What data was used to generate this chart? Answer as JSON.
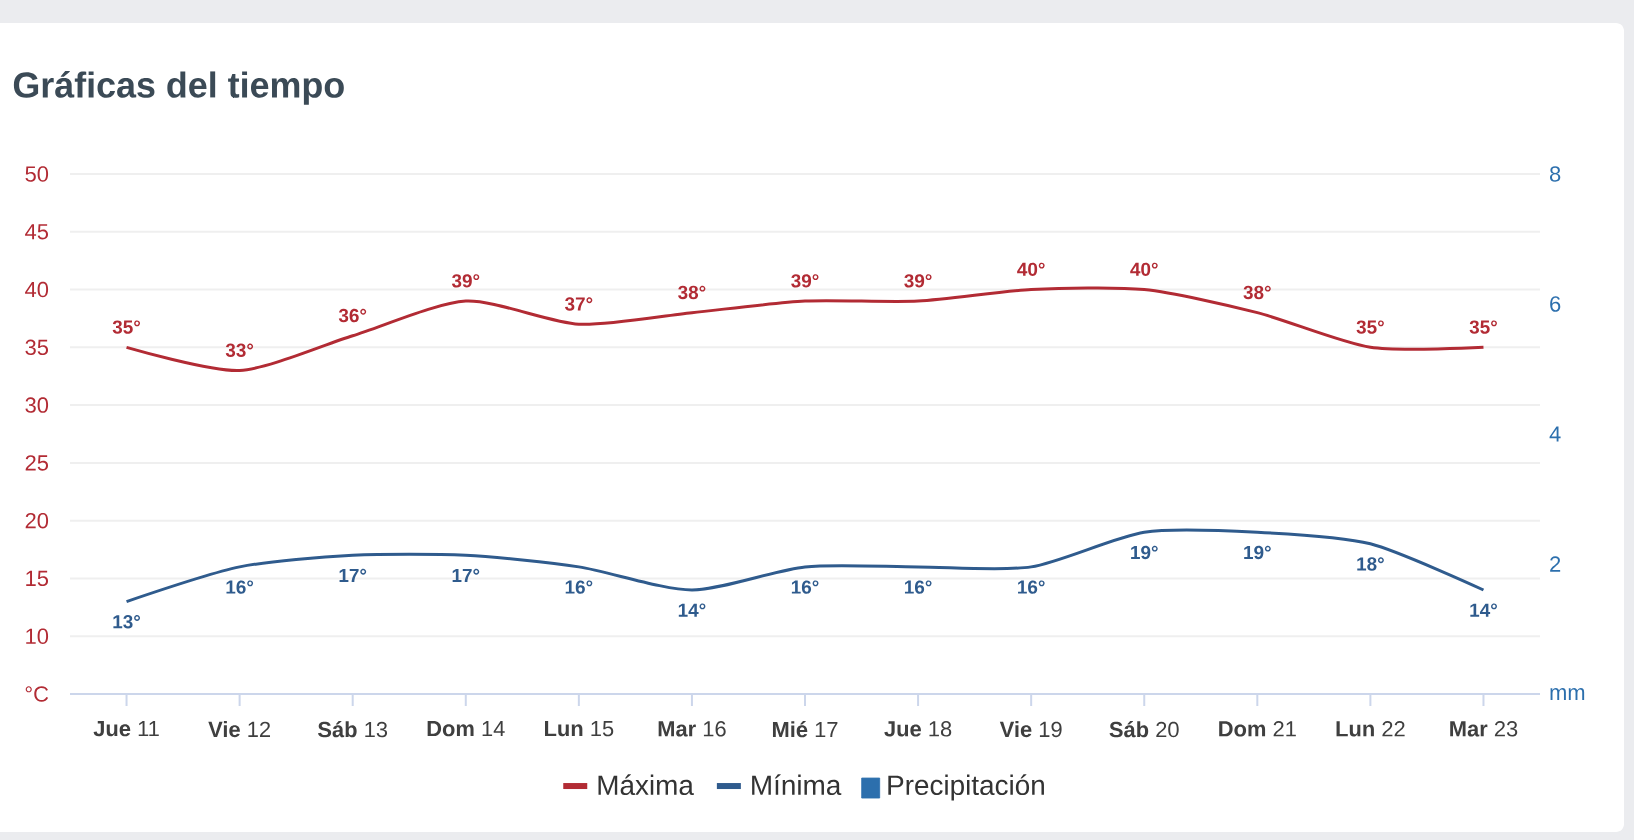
{
  "chart_data": {
    "type": "line",
    "title": "Gráficas del tiempo",
    "categories": [
      "**Jue** 11",
      "**Vie** 12",
      "**Sáb** 13",
      "**Dom** 14",
      "**Lun** 15",
      "**Mar** 16",
      "**Mié** 17",
      "**Jue** 18",
      "**Vie** 19",
      "**Sáb** 20",
      "**Dom** 21",
      "**Lun** 22",
      "**Mar** 23"
    ],
    "series": [
      {
        "name": "Máxima",
        "color": "#b22b34",
        "values": [
          35,
          33,
          36,
          39,
          37,
          38,
          39,
          39,
          40,
          40,
          38,
          35,
          35
        ],
        "value_labels": [
          "35°",
          "33°",
          "36°",
          "39°",
          "37°",
          "38°",
          "39°",
          "39°",
          "40°",
          "40°",
          "38°",
          "35°",
          "35°"
        ]
      },
      {
        "name": "Mínima",
        "color": "#2f5b8d",
        "values": [
          13,
          16,
          17,
          17,
          16,
          14,
          16,
          16,
          16,
          19,
          19,
          18,
          14
        ],
        "value_labels": [
          "13°",
          "16°",
          "17°",
          "17°",
          "16°",
          "14°",
          "16°",
          "16°",
          "16°",
          "19°",
          "19°",
          "18°",
          "14°"
        ]
      },
      {
        "name": "Precipitación",
        "type": "bar",
        "axis": "y2",
        "color": "#2c6fad",
        "values": [
          0,
          0,
          0,
          0,
          0,
          0,
          0,
          0,
          0,
          0,
          0,
          0,
          0
        ]
      }
    ],
    "ylim": [
      5,
      50
    ],
    "yticks": [
      {
        "value": 5,
        "label": "°C"
      },
      10,
      15,
      20,
      25,
      30,
      35,
      40,
      45,
      50
    ],
    "y2lim": [
      0,
      8
    ],
    "y2ticks": [
      {
        "value": 0,
        "label": "mm"
      },
      2,
      4,
      6,
      8
    ],
    "grid": "y",
    "legend": "bottom",
    "marker": "none"
  }
}
